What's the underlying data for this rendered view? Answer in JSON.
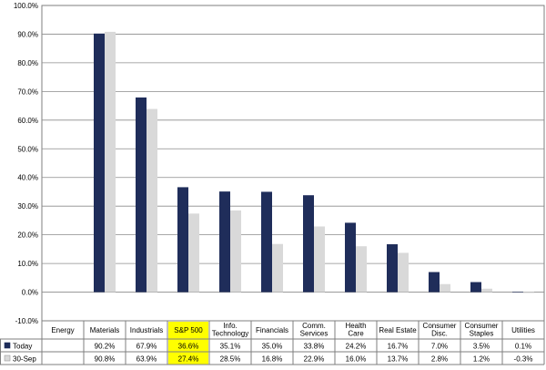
{
  "chart_data": {
    "type": "bar",
    "categories": [
      [
        "Energy"
      ],
      [
        "Materials"
      ],
      [
        "Industrials"
      ],
      [
        "S&P 500"
      ],
      [
        "Info.",
        "Technology"
      ],
      [
        "Financials"
      ],
      [
        "Comm.",
        "Services"
      ],
      [
        "Health",
        "Care"
      ],
      [
        "Real Estate"
      ],
      [
        "Consumer",
        "Disc."
      ],
      [
        "Consumer",
        "Staples"
      ],
      [
        "Utilities"
      ]
    ],
    "highlight_index": 3,
    "highlight_color": "#ffff00",
    "series": [
      {
        "name": "Today",
        "color": "#1f2d5a",
        "values": [
          null,
          90.2,
          67.9,
          36.6,
          35.1,
          35.0,
          33.8,
          24.2,
          16.7,
          7.0,
          3.5,
          0.1
        ]
      },
      {
        "name": "30-Sep",
        "color": "#d9d9d9",
        "values": [
          null,
          90.8,
          63.9,
          27.4,
          28.5,
          16.8,
          22.9,
          16.0,
          13.7,
          2.8,
          1.2,
          -0.3
        ]
      }
    ],
    "table_values": [
      [
        "",
        "90.2%",
        "67.9%",
        "36.6%",
        "35.1%",
        "35.0%",
        "33.8%",
        "24.2%",
        "16.7%",
        "7.0%",
        "3.5%",
        "0.1%"
      ],
      [
        "",
        "90.8%",
        "63.9%",
        "27.4%",
        "28.5%",
        "16.8%",
        "22.9%",
        "16.0%",
        "13.7%",
        "2.8%",
        "1.2%",
        "-0.3%"
      ]
    ],
    "yticks": [
      "100.0%",
      "90.0%",
      "80.0%",
      "70.0%",
      "60.0%",
      "50.0%",
      "40.0%",
      "30.0%",
      "20.0%",
      "10.0%",
      "0.0%",
      "-10.0%"
    ],
    "ylim": [
      -10,
      100
    ],
    "grid": true
  }
}
